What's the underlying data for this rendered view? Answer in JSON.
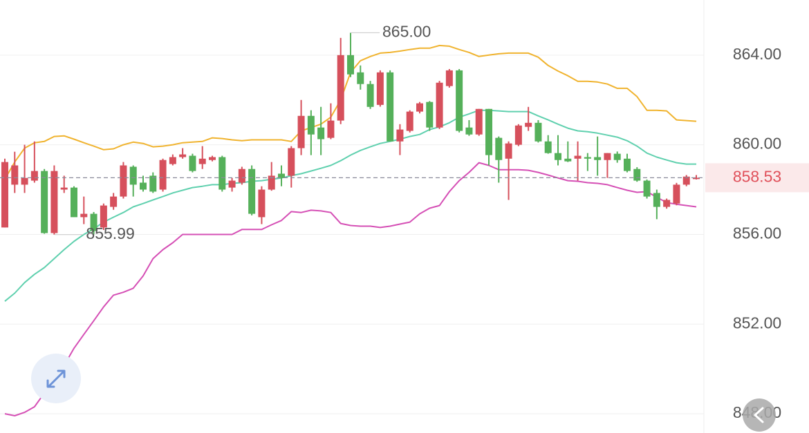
{
  "chart_data": {
    "type": "candlestick",
    "up_color": "#d6505c",
    "down_color": "#55b05a",
    "open": [
      856.31,
      858.22,
      858.22,
      858.4,
      858.83,
      856.06,
      858.0,
      858.09,
      856.77,
      856.92,
      856.31,
      857.23,
      857.69,
      859.02,
      858.31,
      858.62,
      858.0,
      859.14,
      859.45,
      859.51,
      859.14,
      859.32,
      859.45,
      858.09,
      858.31,
      858.92,
      856.77,
      858.0,
      858.71,
      858.62,
      859.85,
      861.29,
      860.77,
      860.31,
      861.08,
      864.0,
      863.23,
      862.71,
      861.78,
      863.23,
      860.15,
      860.62,
      861.48,
      861.91,
      860.77,
      862.62,
      863.32,
      860.77,
      860.46,
      861.6,
      860.31,
      859.38,
      860.0,
      860.8,
      860.98,
      860.15,
      859.63,
      859.38,
      859.38,
      859.45,
      859.45,
      859.32,
      859.6,
      859.38,
      858.92,
      858.4,
      857.85,
      857.23,
      857.38,
      858.22,
      858.52
    ],
    "high": [
      859.38,
      859.69,
      860.0,
      860.15,
      858.92,
      859.08,
      858.62,
      858.15,
      857.69,
      857.0,
      857.38,
      857.85,
      859.23,
      859.08,
      858.62,
      858.77,
      859.38,
      859.57,
      859.85,
      859.6,
      859.94,
      859.51,
      859.51,
      858.52,
      859.02,
      859.08,
      858.15,
      859.23,
      859.08,
      859.94,
      862.0,
      861.54,
      861.69,
      861.85,
      864.77,
      865.0,
      863.54,
      862.85,
      863.32,
      863.32,
      860.92,
      861.54,
      861.91,
      861.95,
      862.85,
      863.38,
      863.38,
      861.1,
      861.6,
      861.6,
      860.37,
      860.15,
      860.92,
      861.69,
      861.1,
      860.43,
      860.43,
      860.15,
      860.15,
      859.63,
      860.37,
      859.63,
      859.7,
      859.6,
      859.0,
      858.45,
      858.0,
      857.6,
      858.3,
      858.65,
      858.65
    ],
    "low": [
      856.31,
      857.85,
      857.85,
      858.31,
      856.03,
      855.99,
      857.85,
      856.77,
      856.46,
      856.0,
      856.2,
      857.1,
      857.6,
      857.69,
      857.91,
      857.85,
      857.91,
      859.08,
      859.38,
      858.77,
      858.92,
      859.26,
      857.91,
      857.91,
      858.22,
      856.85,
      856.46,
      857.95,
      858.15,
      858.09,
      859.54,
      859.54,
      859.54,
      860.25,
      860.92,
      863.02,
      862.46,
      861.6,
      861.7,
      860.15,
      859.54,
      860.55,
      861.4,
      860.62,
      860.7,
      862.55,
      860.55,
      860.4,
      860.4,
      859.08,
      858.31,
      857.54,
      859.94,
      860.62,
      860.1,
      859.6,
      859.08,
      859.23,
      858.4,
      858.83,
      858.62,
      858.52,
      859.2,
      858.77,
      858.35,
      857.6,
      856.68,
      857.15,
      857.3,
      858.15,
      858.45
    ],
    "close": [
      859.23,
      859.08,
      858.52,
      858.83,
      856.06,
      858.83,
      858.09,
      856.77,
      856.92,
      856.15,
      857.29,
      857.69,
      859.08,
      858.22,
      858.0,
      857.91,
      859.32,
      859.45,
      859.57,
      858.83,
      859.38,
      859.45,
      858.0,
      858.4,
      858.92,
      856.92,
      858.0,
      858.62,
      858.52,
      859.85,
      861.29,
      860.46,
      860.25,
      861.08,
      864.0,
      863.14,
      862.71,
      861.69,
      863.23,
      860.15,
      860.68,
      861.48,
      861.85,
      860.77,
      862.77,
      863.32,
      860.62,
      860.46,
      861.6,
      859.54,
      859.32,
      860.06,
      860.86,
      860.98,
      860.15,
      859.63,
      859.32,
      859.26,
      859.51,
      859.38,
      859.32,
      859.63,
      859.32,
      858.83,
      858.4,
      857.69,
      857.23,
      857.54,
      858.22,
      858.58,
      858.53
    ],
    "bands": [
      {
        "color": "#f0b32e",
        "values": [
          858.46,
          859.23,
          859.85,
          860.09,
          860.15,
          860.37,
          860.4,
          860.25,
          860.09,
          859.94,
          859.78,
          859.82,
          860.0,
          860.12,
          860.06,
          859.91,
          859.94,
          860.0,
          860.09,
          860.12,
          860.15,
          860.31,
          860.28,
          860.22,
          860.18,
          860.22,
          860.22,
          860.22,
          860.22,
          860.15,
          860.62,
          860.77,
          860.92,
          861.23,
          862.0,
          863.23,
          863.75,
          863.94,
          864.09,
          864.12,
          864.18,
          864.25,
          864.31,
          864.31,
          864.43,
          864.4,
          864.25,
          864.12,
          863.94,
          864.0,
          864.06,
          864.09,
          864.09,
          864.09,
          863.91,
          863.54,
          863.29,
          863.08,
          862.83,
          862.83,
          862.8,
          862.71,
          862.52,
          862.52,
          862.15,
          861.54,
          861.54,
          861.51,
          861.11,
          861.08,
          861.05
        ]
      },
      {
        "color": "#5fd0ae",
        "values": [
          853.02,
          853.38,
          853.85,
          854.22,
          854.52,
          854.92,
          855.32,
          855.69,
          856.0,
          856.25,
          856.55,
          856.77,
          856.98,
          857.23,
          857.38,
          857.54,
          857.69,
          857.85,
          857.97,
          858.09,
          858.15,
          858.22,
          858.22,
          858.28,
          858.31,
          858.37,
          858.4,
          858.46,
          858.52,
          858.62,
          858.71,
          858.83,
          858.95,
          859.08,
          859.29,
          859.54,
          859.75,
          859.91,
          860.06,
          860.15,
          860.25,
          860.37,
          860.46,
          860.68,
          860.8,
          860.98,
          861.23,
          861.38,
          861.54,
          861.54,
          861.51,
          861.48,
          861.48,
          861.48,
          861.29,
          861.11,
          860.92,
          860.74,
          860.62,
          860.58,
          860.52,
          860.43,
          860.34,
          860.18,
          859.94,
          859.63,
          859.45,
          859.32,
          859.2,
          859.14,
          859.14
        ]
      },
      {
        "color": "#d54fb5",
        "values": [
          848.0,
          847.91,
          848.06,
          848.31,
          848.92,
          849.54,
          850.15,
          850.92,
          851.54,
          852.15,
          852.77,
          853.29,
          853.42,
          853.6,
          854.15,
          854.92,
          855.32,
          855.63,
          856.0,
          856.0,
          856.0,
          856.0,
          856.0,
          856.0,
          856.22,
          856.22,
          856.22,
          856.43,
          856.62,
          857.02,
          856.98,
          857.08,
          857.05,
          856.98,
          856.49,
          856.4,
          856.37,
          856.37,
          856.31,
          856.37,
          856.46,
          856.55,
          856.92,
          857.17,
          857.29,
          857.91,
          858.4,
          858.77,
          859.2,
          859.08,
          858.89,
          858.89,
          858.89,
          858.86,
          858.77,
          858.65,
          858.52,
          858.4,
          858.37,
          858.31,
          858.28,
          858.22,
          858.09,
          857.97,
          857.88,
          857.91,
          857.66,
          857.42,
          857.35,
          857.29,
          857.23
        ]
      }
    ],
    "annotations": [
      {
        "value": 865.0,
        "label": "865.00"
      },
      {
        "value": 855.99,
        "label": "855.99"
      }
    ],
    "last_price": {
      "value": 858.53,
      "label": "858.53"
    },
    "ylim": [
      847.14,
      866.46
    ],
    "yticks": [
      {
        "value": 848,
        "label": "848.00"
      },
      {
        "value": 852,
        "label": "852.00"
      },
      {
        "value": 856,
        "label": "856.00"
      },
      {
        "value": 860,
        "label": "860.00"
      },
      {
        "value": 864,
        "label": "864.00"
      }
    ],
    "grid": true
  }
}
